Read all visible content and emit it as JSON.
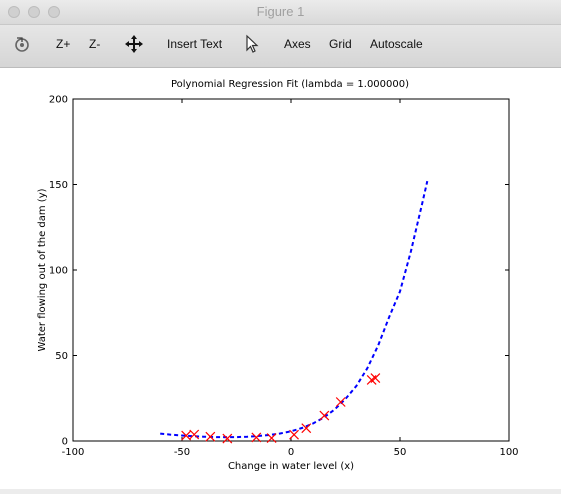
{
  "window": {
    "title": "Figure 1"
  },
  "toolbar": {
    "items": [
      {
        "icon": "rotate-icon"
      },
      {
        "label": "Z+"
      },
      {
        "label": "Z-"
      },
      {
        "icon": "pan-icon"
      },
      {
        "label": "Insert Text"
      },
      {
        "icon": "select-pointer-icon"
      },
      {
        "label": "Axes"
      },
      {
        "label": "Grid"
      },
      {
        "label": "Autoscale"
      }
    ]
  },
  "chart_data": {
    "type": "scatter",
    "title": "Polynomial Regression Fit (lambda = 1.000000)",
    "xlabel": "Change in water level (x)",
    "ylabel": "Water flowing out of the dam (y)",
    "xlim": [
      -100,
      100
    ],
    "ylim": [
      0,
      200
    ],
    "xticks": [
      -100,
      -50,
      0,
      50,
      100
    ],
    "xtick_labels": [
      "-100",
      "-50",
      "0",
      "50",
      "100"
    ],
    "yticks": [
      0,
      50,
      100,
      150,
      200
    ],
    "ytick_labels": [
      "0",
      "50",
      "100",
      "150",
      "200"
    ],
    "grid": false,
    "series": [
      {
        "kind": "scatter",
        "marker": "x",
        "color": "#ff0000",
        "x": [
          -48.1,
          -44.4,
          -37.0,
          -29.2,
          -15.9,
          -8.9,
          1.4,
          7.0,
          15.3,
          22.8,
          37.0,
          38.7
        ],
        "y": [
          3.2,
          3.8,
          2.5,
          1.4,
          2.1,
          1.7,
          3.7,
          7.5,
          14.9,
          22.8,
          35.7,
          36.8
        ]
      },
      {
        "kind": "line",
        "style": "dashed",
        "color": "#0000ff",
        "x": [
          -60,
          -55,
          -50,
          -45,
          -40,
          -35,
          -30,
          -25,
          -20,
          -15,
          -10,
          -5,
          0,
          5,
          10,
          15,
          20,
          25,
          30,
          35,
          40,
          45,
          50,
          55,
          58,
          60,
          62.5
        ],
        "y": [
          4.3,
          3.7,
          3.2,
          2.8,
          2.5,
          2.3,
          2.2,
          2.3,
          2.5,
          2.9,
          3.5,
          4.4,
          5.7,
          7.6,
          10.2,
          13.7,
          18.4,
          24.6,
          32.2,
          42.5,
          55.9,
          72.4,
          87.5,
          110.9,
          127.0,
          137.9,
          152.0
        ]
      }
    ]
  }
}
